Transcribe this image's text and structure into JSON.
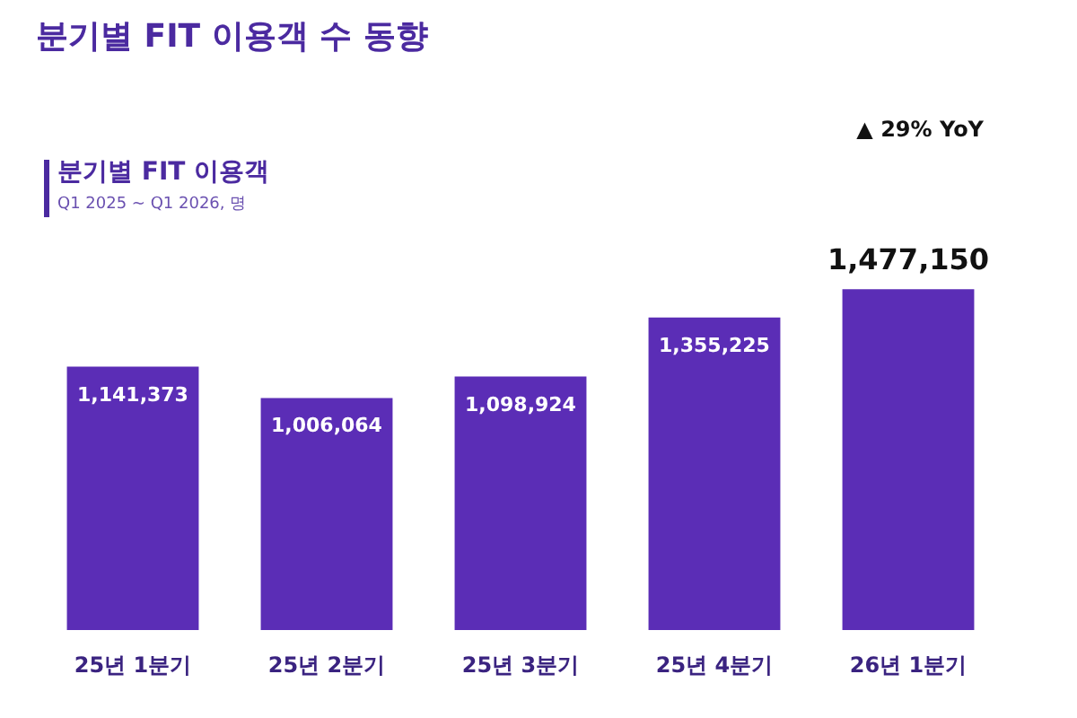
{
  "chart_data": {
    "type": "bar",
    "title": "분기별 FIT 이용객 수 동향",
    "subtitle": "분기별 FIT 이용객",
    "annotations": [
      "Q1 2025 ~ Q1 2026, 명",
      "▲ 29%   YoY"
    ],
    "categories": [
      "25년 1분기",
      "25년 2분기",
      "25년 3분기",
      "25년 4분기",
      "26년 1분기"
    ],
    "values": [
      1141373,
      1006064,
      1098924,
      1355225,
      1477150
    ],
    "color": "#5b2db6",
    "value_labels": [
      "1,141,373",
      "1,006,064",
      "1,098,924",
      "1,355,225",
      "1,477,150"
    ]
  }
}
